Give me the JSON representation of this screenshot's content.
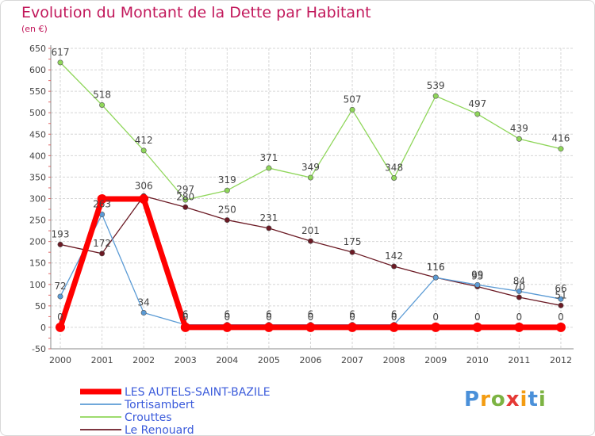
{
  "chart_data": {
    "type": "line",
    "title": "Evolution du Montant de la Dette par Habitant",
    "subtitle": "(en €)",
    "x": [
      "2000",
      "2001",
      "2002",
      "2003",
      "2004",
      "2005",
      "2006",
      "2007",
      "2008",
      "2009",
      "2010",
      "2011",
      "2012"
    ],
    "ylim": [
      -50,
      650
    ],
    "yticks": [
      -50,
      0,
      50,
      100,
      150,
      200,
      250,
      300,
      350,
      400,
      450,
      500,
      550,
      600,
      650
    ],
    "grid": true,
    "legend_position": "bottom-left",
    "series": [
      {
        "name": "LES AUTELS-SAINT-BAZILE",
        "color": "#ff0000",
        "values": [
          0,
          299,
          299,
          0,
          0,
          0,
          0,
          0,
          0,
          0,
          0,
          0,
          0
        ],
        "labels": [
          "0",
          "",
          "",
          "0",
          "0",
          "0",
          "0",
          "0",
          "0",
          "0",
          "0",
          "0",
          "0"
        ]
      },
      {
        "name": "Tortisambert",
        "color": "#5b9bd5",
        "values": [
          72,
          263,
          34,
          6,
          6,
          6,
          6,
          6,
          6,
          116,
          99,
          84,
          66
        ],
        "labels": [
          "72",
          "263",
          "34",
          "6",
          "6",
          "6",
          "6",
          "6",
          "6",
          "116",
          "99",
          "84",
          "66"
        ]
      },
      {
        "name": "Crouttes",
        "color": "#8fd65a",
        "values": [
          617,
          518,
          412,
          297,
          319,
          371,
          349,
          507,
          348,
          539,
          497,
          439,
          416
        ],
        "labels": [
          "617",
          "518",
          "412",
          "297",
          "319",
          "371",
          "349",
          "507",
          "348",
          "539",
          "497",
          "439",
          "416"
        ]
      },
      {
        "name": "Le Renouard",
        "color": "#6b1a24",
        "values": [
          193,
          172,
          306,
          280,
          250,
          231,
          201,
          175,
          142,
          116,
          95,
          70,
          51
        ],
        "labels": [
          "193",
          "172",
          "306",
          "280",
          "250",
          "231",
          "201",
          "175",
          "142",
          "116",
          "95",
          "70",
          "51"
        ]
      }
    ]
  },
  "logo": {
    "letters": [
      "P",
      "r",
      "o",
      "x",
      "i",
      "t",
      "i"
    ],
    "colors": [
      "#4a90d9",
      "#f39c12",
      "#7cb342",
      "#e53935",
      "#f39c12",
      "#4a90d9",
      "#7cb342"
    ]
  }
}
